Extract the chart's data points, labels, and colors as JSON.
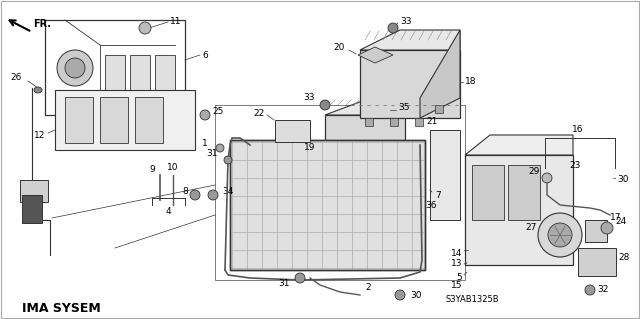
{
  "bg": "#ffffff",
  "tc": "#000000",
  "lc": "#333333",
  "bottom_left_text": "IMA SYSEM",
  "bottom_right_text": "S3YAB1325B",
  "figsize": [
    6.4,
    3.19
  ],
  "dpi": 100
}
